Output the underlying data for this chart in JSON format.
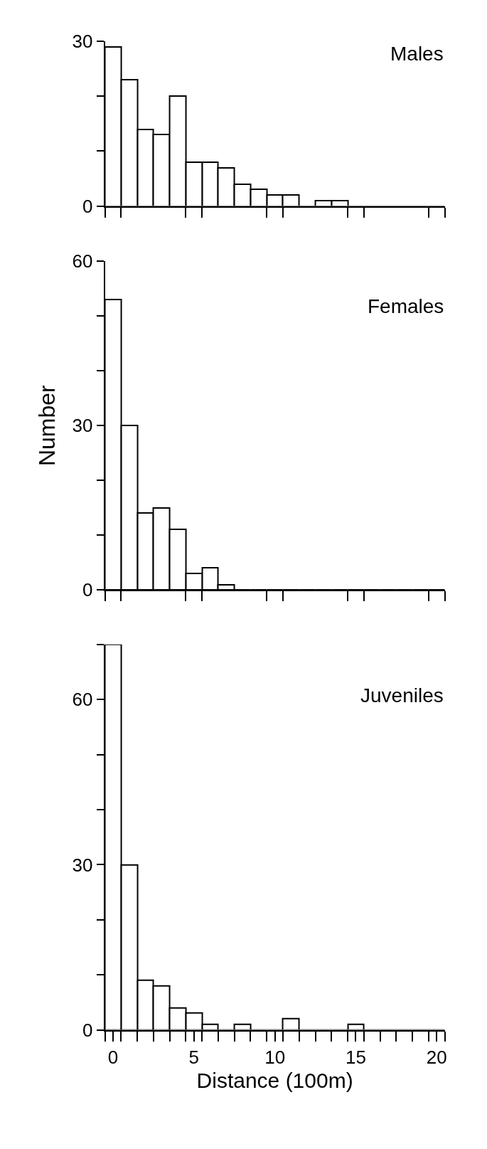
{
  "chart_data": [
    {
      "type": "histogram",
      "title": "Males",
      "color": "#000000",
      "bins": [
        -0.5,
        0.5,
        1.5,
        2.5,
        3.5,
        4.5,
        5.5,
        6.5,
        7.5,
        8.5,
        9.5,
        10.5,
        11.5,
        12.5,
        13.5,
        14.5,
        15.5,
        16.5,
        17.5,
        18.5,
        19.5,
        20.5
      ],
      "values": [
        29,
        23,
        14,
        13,
        20,
        8,
        8,
        7,
        4,
        3,
        2,
        2,
        0,
        1,
        1,
        0,
        0,
        0,
        0,
        0,
        0
      ],
      "xlim": [
        -0.5,
        20.5
      ],
      "xticks": [
        {
          "value": -0.5,
          "label": null
        },
        {
          "value": 0.5,
          "label": null
        },
        {
          "value": 4.5,
          "label": null
        },
        {
          "value": 5.5,
          "label": null
        },
        {
          "value": 9.5,
          "label": null
        },
        {
          "value": 10.5,
          "label": null
        },
        {
          "value": 14.5,
          "label": null
        },
        {
          "value": 15.5,
          "label": null
        },
        {
          "value": 19.5,
          "label": null
        },
        {
          "value": 20.5,
          "label": null
        }
      ],
      "ylim": [
        0,
        30
      ],
      "yticks": [
        0,
        {
          "value": 10,
          "label": null
        },
        {
          "value": 20,
          "label": null
        },
        30
      ],
      "tick_labels": "y"
    },
    {
      "type": "histogram",
      "title": "Females",
      "ylabel": "Number",
      "color": "#000000",
      "bins": [
        -0.5,
        0.5,
        1.5,
        2.5,
        3.5,
        4.5,
        5.5,
        6.5,
        7.5,
        8.5,
        9.5,
        10.5,
        11.5,
        12.5,
        13.5,
        14.5,
        15.5,
        16.5,
        17.5,
        18.5,
        19.5,
        20.5
      ],
      "values": [
        53,
        30,
        14,
        15,
        11,
        3,
        4,
        1,
        0,
        0,
        0,
        0,
        0,
        0,
        0,
        0,
        0,
        0,
        0,
        0,
        0
      ],
      "xlim": [
        -0.5,
        20.5
      ],
      "xticks": [
        {
          "value": -0.5,
          "label": null
        },
        {
          "value": 0.5,
          "label": null
        },
        {
          "value": 4.5,
          "label": null
        },
        {
          "value": 5.5,
          "label": null
        },
        {
          "value": 9.5,
          "label": null
        },
        {
          "value": 10.5,
          "label": null
        },
        {
          "value": 14.5,
          "label": null
        },
        {
          "value": 15.5,
          "label": null
        },
        {
          "value": 19.5,
          "label": null
        },
        {
          "value": 20.5,
          "label": null
        }
      ],
      "ylim": [
        0,
        60
      ],
      "yticks": [
        0,
        {
          "value": 10,
          "label": null
        },
        {
          "value": 20,
          "label": null
        },
        30,
        {
          "value": 40,
          "label": null
        },
        {
          "value": 50,
          "label": null
        },
        60
      ],
      "tick_labels": "y"
    },
    {
      "type": "histogram",
      "title": "Juveniles",
      "xlabel": "Distance (100m)",
      "color": "#000000",
      "bins": [
        -0.5,
        0.5,
        1.5,
        2.5,
        3.5,
        4.5,
        5.5,
        6.5,
        7.5,
        8.5,
        9.5,
        10.5,
        11.5,
        12.5,
        13.5,
        14.5,
        15.5,
        16.5,
        17.5,
        18.5,
        19.5,
        20.5
      ],
      "values": [
        70,
        30,
        9,
        8,
        4,
        3,
        1,
        0,
        1,
        0,
        0,
        2,
        0,
        0,
        0,
        1,
        0,
        0,
        0,
        0,
        0
      ],
      "xlim": [
        -0.5,
        20.5
      ],
      "xticks": [
        {
          "value": 0,
          "label": "0"
        },
        {
          "value": 5,
          "label": "5"
        },
        {
          "value": 10,
          "label": "10"
        },
        {
          "value": 15,
          "label": "15"
        },
        {
          "value": 20,
          "label": "20"
        },
        {
          "value": -0.5,
          "label": null
        },
        {
          "value": 0.5,
          "label": null
        },
        {
          "value": 1.5,
          "label": null
        },
        {
          "value": 2.5,
          "label": null
        },
        {
          "value": 3.5,
          "label": null
        },
        {
          "value": 4.5,
          "label": null
        },
        {
          "value": 5.5,
          "label": null
        },
        {
          "value": 6.5,
          "label": null
        },
        {
          "value": 7.5,
          "label": null
        },
        {
          "value": 8.5,
          "label": null
        },
        {
          "value": 9.5,
          "label": null
        },
        {
          "value": 10.5,
          "label": null
        },
        {
          "value": 11.5,
          "label": null
        },
        {
          "value": 12.5,
          "label": null
        },
        {
          "value": 13.5,
          "label": null
        },
        {
          "value": 14.5,
          "label": null
        },
        {
          "value": 15.5,
          "label": null
        },
        {
          "value": 16.5,
          "label": null
        },
        {
          "value": 17.5,
          "label": null
        },
        {
          "value": 18.5,
          "label": null
        },
        {
          "value": 19.5,
          "label": null
        },
        {
          "value": 20.5,
          "label": null
        }
      ],
      "ylim": [
        0,
        70
      ],
      "yticks": [
        0,
        {
          "value": 10,
          "label": null
        },
        {
          "value": 20,
          "label": null
        },
        30,
        {
          "value": 40,
          "label": null
        },
        {
          "value": 50,
          "label": null
        },
        60,
        {
          "value": 70,
          "label": null
        }
      ]
    }
  ]
}
